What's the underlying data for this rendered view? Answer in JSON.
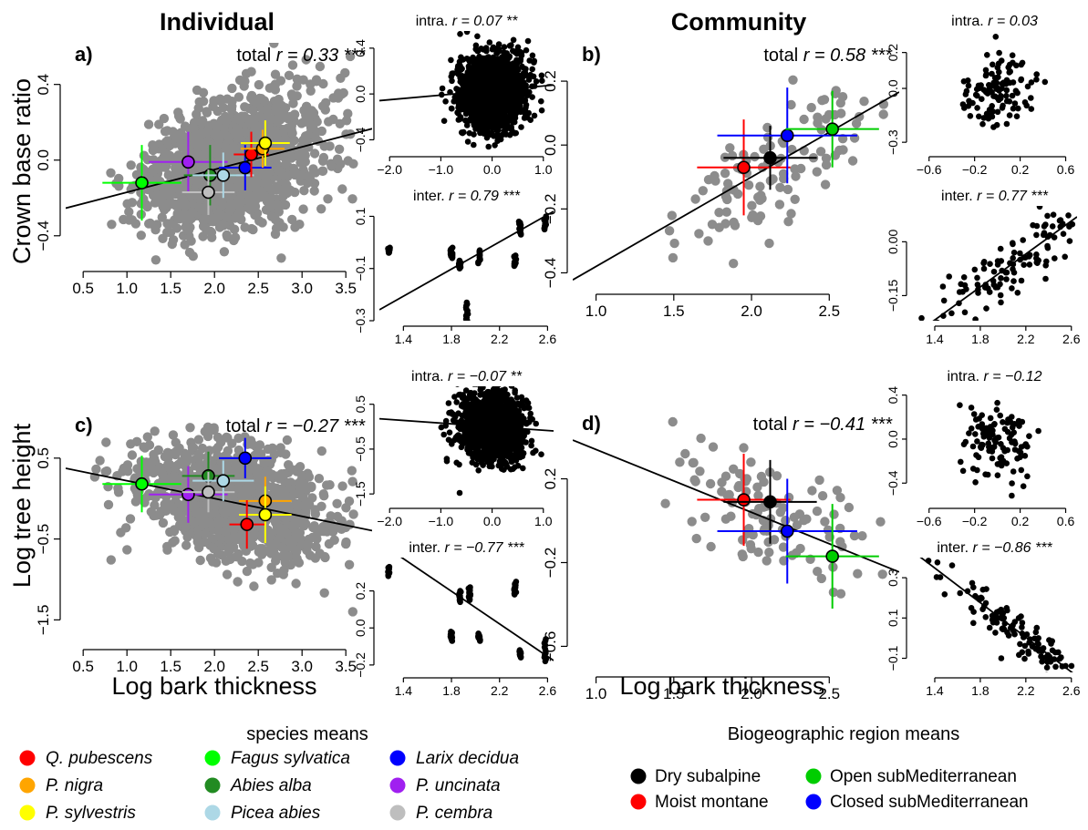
{
  "headers": {
    "individual": "Individual",
    "community": "Community"
  },
  "axis_titles": {
    "y_top": "Crown base ratio",
    "y_bottom": "Log tree height",
    "x_left": "Log bark thickness",
    "x_right": "Log bark thickness"
  },
  "legends": {
    "species": {
      "title": "species means",
      "items": [
        {
          "label": "Q. pubescens",
          "color": "#ff0000",
          "italic": true
        },
        {
          "label": "P. nigra",
          "color": "#ffa500",
          "italic": true
        },
        {
          "label": "P. sylvestris",
          "color": "#ffff00",
          "italic": true
        },
        {
          "label": "Fagus sylvatica",
          "color": "#00ff00",
          "italic": true
        },
        {
          "label": "Abies alba",
          "color": "#228b22",
          "italic": true
        },
        {
          "label": "Picea abies",
          "color": "#add8e6",
          "italic": true
        },
        {
          "label": "Larix decidua",
          "color": "#0000ff",
          "italic": true
        },
        {
          "label": "P. uncinata",
          "color": "#a020f0",
          "italic": true
        },
        {
          "label": "P. cembra",
          "color": "#bebebe",
          "italic": true
        }
      ]
    },
    "regions": {
      "title": "Biogeographic region means",
      "items": [
        {
          "label": "Dry subalpine",
          "color": "#000000",
          "italic": false
        },
        {
          "label": "Open subMediterranean",
          "color": "#00cd00",
          "italic": false
        },
        {
          "label": "Moist montane",
          "color": "#ff0000",
          "italic": false
        },
        {
          "label": "Closed subMediterranean",
          "color": "#0000ff",
          "italic": false
        }
      ]
    }
  },
  "chart_data": [
    {
      "id": "a",
      "panel_label": "a)",
      "type": "scatter",
      "stat": {
        "prefix": "total ",
        "r": "r = 0.33",
        "sig": "***"
      },
      "xlim": [
        0.3,
        3.8
      ],
      "ylim": [
        -0.56,
        0.62
      ],
      "xticks": [
        0.5,
        1.0,
        1.5,
        2.0,
        2.5,
        3.0,
        3.5
      ],
      "yticks": [
        -0.4,
        0.0,
        0.4
      ],
      "background": {
        "x_center": 2.2,
        "x_sd": 0.5,
        "x_min": 0.45,
        "x_max": 3.6,
        "y_sd": 0.17,
        "n": 1400
      },
      "fit": {
        "intercept": -0.29,
        "slope": 0.12
      },
      "means": [
        {
          "series": "Fagus sylvatica",
          "color": "#00ff00",
          "x": 1.17,
          "y": -0.12,
          "xerr": 0.45,
          "yerr": 0.2
        },
        {
          "series": "P. uncinata",
          "color": "#a020f0",
          "x": 1.7,
          "y": -0.01,
          "xerr": 0.45,
          "yerr": 0.16
        },
        {
          "series": "Abies alba",
          "color": "#228b22",
          "x": 1.95,
          "y": -0.08,
          "xerr": 0.3,
          "yerr": 0.16
        },
        {
          "series": "P. cembra",
          "color": "#bebebe",
          "x": 1.93,
          "y": -0.17,
          "xerr": 0.3,
          "yerr": 0.12
        },
        {
          "series": "Picea abies",
          "color": "#add8e6",
          "x": 2.1,
          "y": -0.08,
          "xerr": 0.35,
          "yerr": 0.12
        },
        {
          "series": "Larix decidua",
          "color": "#0000ff",
          "x": 2.35,
          "y": -0.04,
          "xerr": 0.3,
          "yerr": 0.12
        },
        {
          "series": "Q. pubescens",
          "color": "#ff0000",
          "x": 2.42,
          "y": 0.03,
          "xerr": 0.2,
          "yerr": 0.12
        },
        {
          "series": "P. nigra",
          "color": "#ffa500",
          "x": 2.55,
          "y": 0.06,
          "xerr": 0.25,
          "yerr": 0.1
        },
        {
          "series": "P. sylvestris",
          "color": "#ffff00",
          "x": 2.58,
          "y": 0.09,
          "xerr": 0.28,
          "yerr": 0.12
        }
      ]
    },
    {
      "id": "a-intra",
      "type": "scatter",
      "stat": {
        "prefix": "intra. ",
        "r": "r = 0.07",
        "sig": "**"
      },
      "xlim": [
        -2.2,
        1.2
      ],
      "ylim": [
        -0.5,
        0.55
      ],
      "xticks": [
        -2.0,
        -1.0,
        0.0,
        1.0
      ],
      "xtick_labels": [
        "−2.0",
        "−1.0",
        "0.0",
        "1.0"
      ],
      "yticks": [
        -0.4,
        0.0,
        0.4
      ],
      "ytick_labels": [
        "−0.4",
        "0.0",
        "0.4"
      ],
      "background": {
        "x_center": 0.0,
        "x_sd": 0.3,
        "x_min": -1.9,
        "x_max": 1.0,
        "y_sd": 0.16,
        "n": 1800
      },
      "fit": {
        "intercept": 0.03,
        "slope": 0.04
      }
    },
    {
      "id": "a-inter",
      "type": "scatter",
      "stat": {
        "prefix": "inter. ",
        "r": "r = 0.79",
        "sig": "***"
      },
      "xlim": [
        1.2,
        2.65
      ],
      "ylim": [
        -0.3,
        0.14
      ],
      "xticks": [
        1.4,
        1.8,
        2.2,
        2.6
      ],
      "yticks": [
        -0.3,
        -0.1,
        0.1
      ],
      "ytick_labels": [
        "−0.3",
        "−0.1",
        "0.1"
      ],
      "columns": [
        {
          "x": 1.28,
          "ys": [
            -0.02,
            -0.04
          ]
        },
        {
          "x": 1.8,
          "ys": [
            -0.02,
            -0.06
          ]
        },
        {
          "x": 1.87,
          "ys": [
            -0.07,
            -0.1
          ]
        },
        {
          "x": 1.93,
          "ys": [
            -0.23,
            -0.3
          ]
        },
        {
          "x": 2.03,
          "ys": [
            -0.03,
            -0.08
          ]
        },
        {
          "x": 2.33,
          "ys": [
            -0.05,
            -0.09
          ]
        },
        {
          "x": 2.37,
          "ys": [
            0.03,
            0.08
          ]
        },
        {
          "x": 2.58,
          "ys": [
            0.05,
            0.1
          ]
        }
      ],
      "fit": {
        "intercept": -0.57,
        "slope": 0.26
      }
    },
    {
      "id": "b",
      "panel_label": "b)",
      "type": "scatter",
      "stat": {
        "prefix": "total ",
        "r": "r = 0.58",
        "sig": "***"
      },
      "xlim": [
        0.85,
        2.95
      ],
      "ylim": [
        -0.45,
        0.32
      ],
      "xticks": [
        1.0,
        1.5,
        2.0,
        2.5
      ],
      "yticks": [
        -0.4,
        -0.2,
        0.0,
        0.2
      ],
      "ytick_labels": [
        "−0.4",
        "−0.2",
        "0.0",
        "0.2"
      ],
      "background": {
        "x_center": 2.15,
        "x_sd": 0.35,
        "x_min": 1.0,
        "x_max": 2.85,
        "y_sd": 0.09,
        "n": 110
      },
      "fit": {
        "intercept": -0.66,
        "slope": 0.28
      },
      "means": [
        {
          "series": "Moist montane",
          "color": "#ff0000",
          "x": 1.95,
          "y": -0.07,
          "xerr": 0.3,
          "yerr": 0.15
        },
        {
          "series": "Dry subalpine",
          "color": "#000000",
          "x": 2.12,
          "y": -0.04,
          "xerr": 0.3,
          "yerr": 0.1
        },
        {
          "series": "Closed subMediterranean",
          "color": "#0000ff",
          "x": 2.23,
          "y": 0.03,
          "xerr": 0.45,
          "yerr": 0.15
        },
        {
          "series": "Open subMediterranean",
          "color": "#00cd00",
          "x": 2.52,
          "y": 0.05,
          "xerr": 0.3,
          "yerr": 0.12
        }
      ]
    },
    {
      "id": "b-intra",
      "type": "scatter",
      "stat": {
        "prefix": "intra. ",
        "r": "r = 0.03",
        "sig": ""
      },
      "xlim": [
        -0.75,
        0.7
      ],
      "ylim": [
        -0.35,
        0.32
      ],
      "xticks": [
        -0.6,
        -0.2,
        0.2,
        0.6
      ],
      "xtick_labels": [
        "−0.6",
        "−0.2",
        "0.2",
        "0.6"
      ],
      "yticks": [
        -0.3,
        0.0,
        0.2
      ],
      "ytick_labels": [
        "−0.3",
        "0.0",
        "0.2"
      ],
      "background": {
        "x_center": 0.0,
        "x_sd": 0.16,
        "x_min": -0.65,
        "x_max": 0.6,
        "y_sd": 0.1,
        "n": 110
      }
    },
    {
      "id": "b-inter",
      "type": "scatter",
      "stat": {
        "prefix": "inter. ",
        "r": "r = 0.77",
        "sig": "***"
      },
      "xlim": [
        1.2,
        2.65
      ],
      "ylim": [
        -0.22,
        0.1
      ],
      "xticks": [
        1.4,
        1.8,
        2.2,
        2.6
      ],
      "yticks": [
        -0.15,
        0.0
      ],
      "ytick_labels": [
        "−0.15",
        "0.00"
      ],
      "background": {
        "x_center": 2.1,
        "x_sd": 0.35,
        "x_min": 1.25,
        "x_max": 2.62,
        "y_sd": 0.05,
        "n": 110,
        "follow_fit": true
      },
      "fit": {
        "intercept": -0.54,
        "slope": 0.23
      }
    },
    {
      "id": "c",
      "panel_label": "c)",
      "type": "scatter",
      "stat": {
        "prefix": "total ",
        "r": "r = −0.27",
        "sig": "***"
      },
      "xlim": [
        0.3,
        3.8
      ],
      "ylim": [
        -1.8,
        1.05
      ],
      "xticks": [
        0.5,
        1.0,
        1.5,
        2.0,
        2.5,
        3.0,
        3.5
      ],
      "yticks": [
        -1.5,
        -0.5,
        0.5
      ],
      "ytick_labels": [
        "−1.5",
        "−0.5",
        "0.5"
      ],
      "background": {
        "x_center": 2.2,
        "x_sd": 0.5,
        "x_min": 0.45,
        "x_max": 3.6,
        "y_sd": 0.32,
        "n": 1400
      },
      "fit": {
        "intercept": 0.44,
        "slope": -0.22
      },
      "means": [
        {
          "series": "Fagus sylvatica",
          "color": "#00ff00",
          "x": 1.17,
          "y": 0.18,
          "xerr": 0.45,
          "yerr": 0.35
        },
        {
          "series": "P. uncinata",
          "color": "#a020f0",
          "x": 1.7,
          "y": 0.05,
          "xerr": 0.45,
          "yerr": 0.35
        },
        {
          "series": "Abies alba",
          "color": "#228b22",
          "x": 1.93,
          "y": 0.28,
          "xerr": 0.3,
          "yerr": 0.3
        },
        {
          "series": "P. cembra",
          "color": "#bebebe",
          "x": 1.93,
          "y": 0.08,
          "xerr": 0.3,
          "yerr": 0.25
        },
        {
          "series": "Picea abies",
          "color": "#add8e6",
          "x": 2.1,
          "y": 0.22,
          "xerr": 0.35,
          "yerr": 0.25
        },
        {
          "series": "Larix decidua",
          "color": "#0000ff",
          "x": 2.35,
          "y": 0.5,
          "xerr": 0.3,
          "yerr": 0.25
        },
        {
          "series": "P. nigra",
          "color": "#ffa500",
          "x": 2.58,
          "y": -0.03,
          "xerr": 0.3,
          "yerr": 0.3
        },
        {
          "series": "P. sylvestris",
          "color": "#ffff00",
          "x": 2.58,
          "y": -0.2,
          "xerr": 0.3,
          "yerr": 0.35
        },
        {
          "series": "Q. pubescens",
          "color": "#ff0000",
          "x": 2.37,
          "y": -0.32,
          "xerr": 0.2,
          "yerr": 0.3
        }
      ]
    },
    {
      "id": "c-intra",
      "type": "scatter",
      "stat": {
        "prefix": "intra. ",
        "r": "r = −0.07",
        "sig": "**"
      },
      "xlim": [
        -2.2,
        1.2
      ],
      "ylim": [
        -1.7,
        0.9
      ],
      "xticks": [
        -2.0,
        -1.0,
        0.0,
        1.0
      ],
      "xtick_labels": [
        "−2.0",
        "−1.0",
        "0.0",
        "1.0"
      ],
      "yticks": [
        -1.5,
        -0.5,
        0.5
      ],
      "ytick_labels": [
        "−1.5",
        "−0.5",
        "0.5"
      ],
      "background": {
        "x_center": 0.0,
        "x_sd": 0.3,
        "x_min": -1.9,
        "x_max": 1.0,
        "y_sd": 0.35,
        "n": 1800
      },
      "fit": {
        "intercept": 0.0,
        "slope": -0.08
      }
    },
    {
      "id": "c-inter",
      "type": "scatter",
      "stat": {
        "prefix": "inter. ",
        "r": "r = −0.77",
        "sig": "***"
      },
      "xlim": [
        1.2,
        2.65
      ],
      "ylim": [
        -0.24,
        0.38
      ],
      "xticks": [
        1.4,
        1.8,
        2.2,
        2.6
      ],
      "yticks": [
        -0.2,
        0.0,
        0.2
      ],
      "ytick_labels": [
        "−0.2",
        "0.0",
        "0.2"
      ],
      "columns": [
        {
          "x": 1.28,
          "ys": [
            0.28,
            0.33
          ]
        },
        {
          "x": 1.8,
          "ys": [
            -0.07,
            -0.02
          ]
        },
        {
          "x": 1.87,
          "ys": [
            0.14,
            0.2
          ]
        },
        {
          "x": 1.95,
          "ys": [
            0.15,
            0.22
          ]
        },
        {
          "x": 2.03,
          "ys": [
            -0.07,
            -0.03
          ]
        },
        {
          "x": 2.33,
          "ys": [
            0.18,
            0.25
          ]
        },
        {
          "x": 2.37,
          "ys": [
            -0.16,
            -0.12
          ]
        },
        {
          "x": 2.58,
          "ys": [
            -0.18,
            -0.06
          ]
        }
      ],
      "fit": {
        "intercept": 0.99,
        "slope": -0.44
      }
    },
    {
      "id": "d",
      "panel_label": "d)",
      "type": "scatter",
      "stat": {
        "prefix": "total ",
        "r": "r = −0.41",
        "sig": "***"
      },
      "xlim": [
        0.85,
        2.95
      ],
      "ylim": [
        -0.72,
        0.52
      ],
      "xticks": [
        1.0,
        1.5,
        2.0,
        2.5
      ],
      "yticks": [
        -0.6,
        -0.2,
        0.2
      ],
      "ytick_labels": [
        "−0.6",
        "−0.2",
        "0.2"
      ],
      "background": {
        "x_center": 2.15,
        "x_sd": 0.35,
        "x_min": 1.0,
        "x_max": 2.85,
        "y_sd": 0.15,
        "n": 110
      },
      "fit": {
        "intercept": 0.64,
        "slope": -0.3
      },
      "means": [
        {
          "series": "Moist montane",
          "color": "#ff0000",
          "x": 1.95,
          "y": 0.1,
          "xerr": 0.3,
          "yerr": 0.22
        },
        {
          "series": "Dry subalpine",
          "color": "#000000",
          "x": 2.12,
          "y": 0.09,
          "xerr": 0.3,
          "yerr": 0.2
        },
        {
          "series": "Closed subMediterranean",
          "color": "#0000ff",
          "x": 2.23,
          "y": -0.05,
          "xerr": 0.45,
          "yerr": 0.25
        },
        {
          "series": "Open subMediterranean",
          "color": "#00cd00",
          "x": 2.52,
          "y": -0.17,
          "xerr": 0.3,
          "yerr": 0.25
        }
      ]
    },
    {
      "id": "d-intra",
      "type": "scatter",
      "stat": {
        "prefix": "intra. ",
        "r": "r = −0.12",
        "sig": ""
      },
      "xlim": [
        -0.75,
        0.7
      ],
      "ylim": [
        -0.58,
        0.48
      ],
      "xticks": [
        -0.6,
        -0.2,
        0.2,
        0.6
      ],
      "xtick_labels": [
        "−0.6",
        "−0.2",
        "0.2",
        "0.6"
      ],
      "yticks": [
        -0.4,
        0.0,
        0.4
      ],
      "ytick_labels": [
        "−0.4",
        "0.0",
        "0.4"
      ],
      "background": {
        "x_center": 0.0,
        "x_sd": 0.16,
        "x_min": -0.65,
        "x_max": 0.6,
        "y_sd": 0.17,
        "n": 110
      }
    },
    {
      "id": "d-inter",
      "type": "scatter",
      "stat": {
        "prefix": "inter. ",
        "r": "r = −0.86",
        "sig": "***"
      },
      "xlim": [
        1.2,
        2.65
      ],
      "ylim": [
        -0.17,
        0.4
      ],
      "xticks": [
        1.4,
        1.8,
        2.2,
        2.6
      ],
      "yticks": [
        -0.1,
        0.1,
        0.3
      ],
      "ytick_labels": [
        "−0.1",
        "0.1",
        "0.3"
      ],
      "background": {
        "x_center": 2.1,
        "x_sd": 0.35,
        "x_min": 1.25,
        "x_max": 2.62,
        "y_sd": 0.05,
        "n": 110,
        "follow_fit": true
      },
      "fit": {
        "intercept": 0.95,
        "slope": -0.43
      }
    }
  ]
}
